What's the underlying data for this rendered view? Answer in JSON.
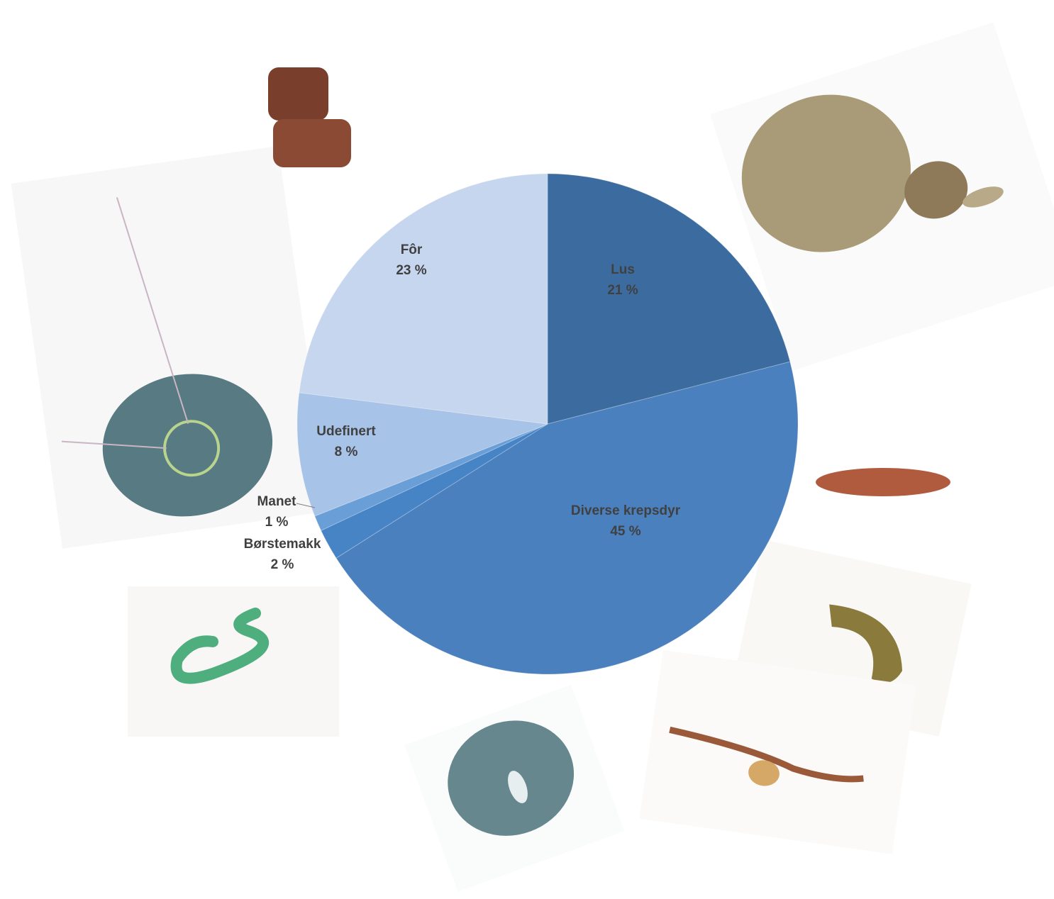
{
  "chart_data": {
    "type": "pie",
    "categories": [
      "Lus",
      "Diverse krepsdyr",
      "Børstemakk",
      "Manet",
      "Udefinert",
      "Fôr"
    ],
    "values": [
      21,
      45,
      2,
      1,
      8,
      23
    ],
    "value_labels": [
      "21 %",
      "45 %",
      "2 %",
      "1 %",
      "8 %",
      "23 %"
    ],
    "colors": [
      "#3c6c9f",
      "#4a80bd",
      "#4784c6",
      "#6a9ed7",
      "#a8c3e8",
      "#c6d6ee"
    ]
  }
}
